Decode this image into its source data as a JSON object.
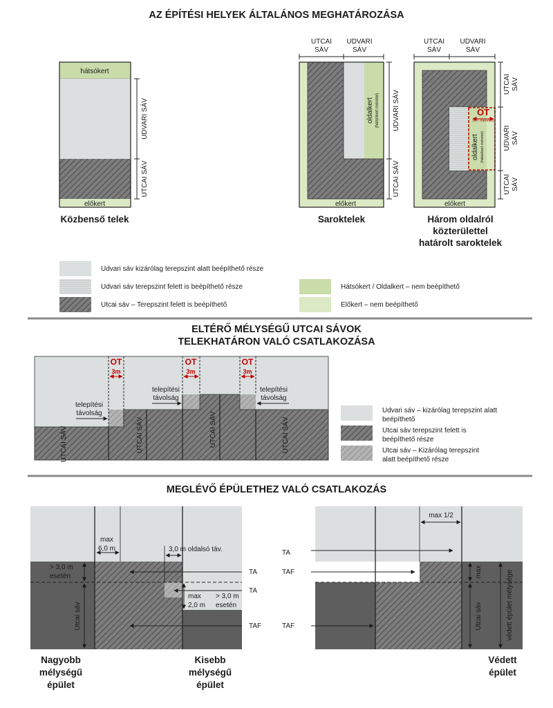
{
  "colors": {
    "hatch_dark": "#6e6e6e",
    "hatch_mid": "#a4a4a4",
    "courtyard": "#dcdfdf",
    "green_back": "#c9dcaa",
    "green_front": "#dbe9c4",
    "existing_dark": "#555555",
    "red": "#c00000"
  },
  "section1": {
    "title": "AZ ÉPÍTÉSI HELYEK ÁLTALÁNOS MEGHATÁROZÁSA",
    "plot1": {
      "back_garden": "hátsókert",
      "front_garden": "előkert",
      "courtyard_band": "UDVARI SÁV",
      "street_band": "UTCAI SÁV",
      "caption": "Közbenső telek"
    },
    "plot2": {
      "top_street_line1": "UTCAI",
      "top_street_line2": "SÁV",
      "top_court_line1": "UDVARI",
      "top_court_line2": "SÁV",
      "side_garden": "oldalkert",
      "side_garden_note": "(hátsókert méretei)",
      "right_court": "UDVARI SÁV",
      "right_street": "UTCAI SÁV",
      "front_garden": "előkert",
      "caption": "Saroktelek"
    },
    "plot3": {
      "top_street_line1": "UTCAI",
      "top_street_line2": "SÁV",
      "top_court_line1": "UDVARI",
      "top_court_line2": "SÁV",
      "ot": "OT",
      "ot_note": "(HT méretei)",
      "side_garden": "oldalkert",
      "side_garden_note": "(hátsókert méretei)",
      "right_street_top_1": "UTCAI",
      "right_street_top_2": "SÁV",
      "right_court_1": "UDVARI",
      "right_court_2": "SÁV",
      "right_street_bot_1": "UTCAI",
      "right_street_bot_2": "SÁV",
      "front_garden": "előkert",
      "caption_line1": "Három oldalról",
      "caption_line2": "közterülettel",
      "caption_line3": "határolt saroktelek"
    },
    "legend": [
      "Udvari sáv kizárólag terepszint alatt beépíthető része",
      "Udvari sáv terepszint felett is beépíthető része",
      "Utcai sáv – Terepszint felett is beépíthető",
      "Hátsókert / Oldalkert – nem beépíthető",
      "Előkert – nem beépíthető"
    ]
  },
  "section2": {
    "title_line1": "ELTÉRŐ MÉLYSÉGŰ UTCAI SÁVOK",
    "title_line2": "TELEKHATÁRON VALÓ CSATLAKOZÁSA",
    "ot": "OT",
    "dist": "3m",
    "setback_line1": "telepítési",
    "setback_line2": "távolság",
    "street_band": "UTCAI SÁV",
    "legend": [
      {
        "line1": "Udvari sáv – kizárólag terepszint alatt",
        "line2": "beépíthető"
      },
      {
        "line1": "Utcai sáv terepszint felett is",
        "line2": "beépíthető része"
      },
      {
        "line1": "Utcai sáv – Kizárólag terepszint",
        "line2": "alatt beépíthető része"
      }
    ]
  },
  "section3": {
    "title": "MEGLÉVŐ ÉPÜLETHEZ VALÓ CSATLAKOZÁS",
    "max": "max",
    "max_60": "6,0 m",
    "side_dist": "3,0 m oldalsó táv.",
    "gt3_line1": "> 3,0 m",
    "gt3_line2": "esetén",
    "max_20": "2,0 m",
    "ta": "TA",
    "taf": "TAF",
    "street_band": "Utcai sáv",
    "max_half": "max 1/2",
    "protected_depth": "védett épület mélysége",
    "caption_left_1": "Nagyobb",
    "caption_left_2": "mélységű",
    "caption_left_3": "épület",
    "caption_mid_1": "Kisebb",
    "caption_mid_2": "mélységű",
    "caption_mid_3": "épület",
    "caption_right_1": "Védett",
    "caption_right_2": "épület"
  }
}
